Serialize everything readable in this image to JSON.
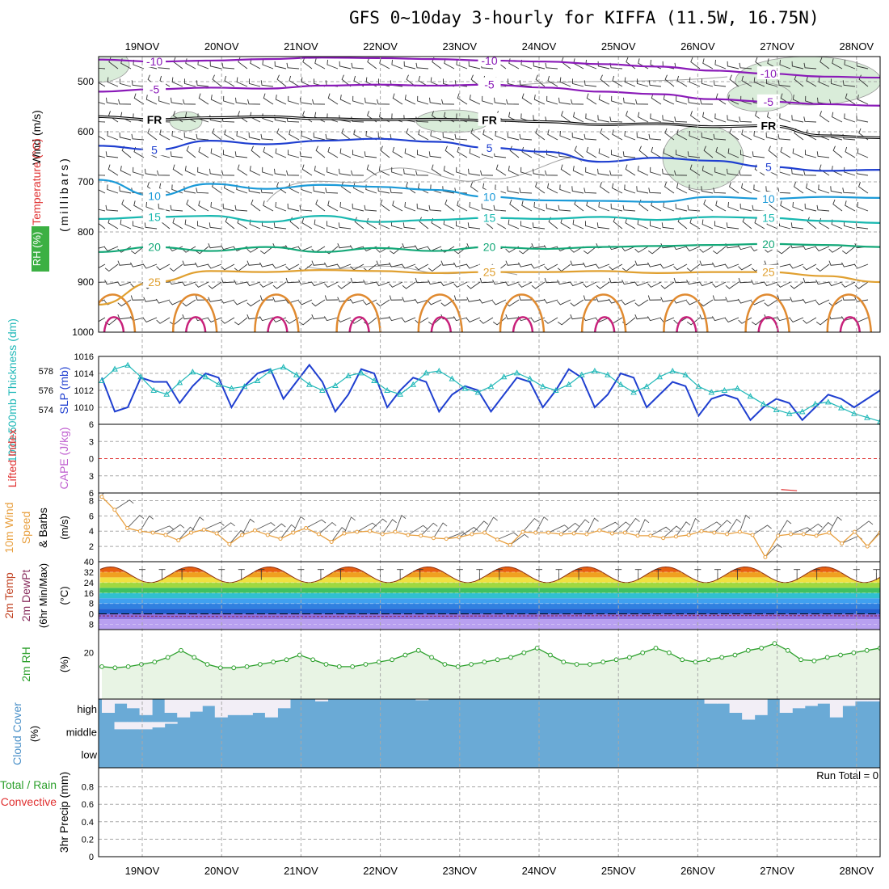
{
  "title": "GFS 0~10day 3-hourly for KIFFA (11.5W, 16.75N)",
  "dates": [
    "19NOV",
    "20NOV",
    "21NOV",
    "22NOV",
    "23NOV",
    "24NOV",
    "25NOV",
    "26NOV",
    "27NOV",
    "28NOV"
  ],
  "colors": {
    "grid": "#a8a8a8",
    "frame": "#000000",
    "wind_bg": "#d9ecd9",
    "rain_label": "#2ca02c",
    "conv_label": "#e03030"
  },
  "chart_data": [
    {
      "type": "line",
      "name": "upper-air",
      "ylabel": "(millibars)",
      "labels": {
        "wind": "Wind (m/s)",
        "temp": "Temperature (°C)",
        "rh": "RH (%)"
      },
      "y_ticks": [
        500,
        600,
        700,
        800,
        900,
        1000
      ],
      "ylim": [
        450,
        1000
      ],
      "isotherms": [
        {
          "temp": -10,
          "label": "-10",
          "color": "#8a1ab8",
          "mb": [
            456,
            460,
            458,
            455,
            452,
            453,
            455,
            458,
            460,
            465,
            470,
            478,
            484,
            490,
            492
          ]
        },
        {
          "temp": -5,
          "label": "-5",
          "color": "#8a1ab8",
          "mb": [
            520,
            515,
            512,
            514,
            508,
            506,
            508,
            506,
            512,
            520,
            525,
            535,
            540,
            545,
            548
          ]
        },
        {
          "temp": 0,
          "label": "FR",
          "color": "#000000",
          "mb": [
            570,
            576,
            572,
            570,
            574,
            576,
            575,
            577,
            580,
            586,
            584,
            590,
            588,
            608,
            612
          ]
        },
        {
          "temp": 5,
          "label": "5",
          "color": "#1f3fd0",
          "mb": [
            628,
            636,
            618,
            625,
            618,
            614,
            620,
            632,
            640,
            660,
            652,
            658,
            670,
            678,
            676
          ]
        },
        {
          "temp": 10,
          "label": "10",
          "color": "#1a9ad8",
          "mb": [
            696,
            728,
            704,
            714,
            706,
            710,
            716,
            730,
            737,
            738,
            740,
            730,
            734,
            730,
            732
          ]
        },
        {
          "temp": 15,
          "label": "15",
          "color": "#18b8b0",
          "mb": [
            774,
            770,
            768,
            780,
            768,
            780,
            776,
            772,
            774,
            770,
            776,
            770,
            772,
            778,
            782
          ]
        },
        {
          "temp": 20,
          "label": "20",
          "color": "#14a878",
          "mb": [
            840,
            830,
            838,
            830,
            840,
            832,
            838,
            830,
            834,
            830,
            828,
            826,
            824,
            826,
            830
          ]
        },
        {
          "temp": 25,
          "label": "25",
          "color": "#e0a030",
          "mb": [
            945,
            900,
            878,
            880,
            876,
            878,
            882,
            880,
            880,
            878,
            882,
            880,
            880,
            888,
            900
          ]
        }
      ]
    },
    {
      "type": "line",
      "name": "slp-thickness",
      "labels": {
        "thickness": "1000-500mb Thickness (dm)",
        "slp": "SLP (mb)"
      },
      "slp_ticks": [
        1010,
        1012,
        1014,
        1016
      ],
      "thickness_ticks": [
        574,
        576,
        578
      ],
      "slp_range": [
        1008,
        1016
      ],
      "thickness_range": [
        572.5,
        579.5
      ],
      "series": [
        {
          "name": "SLP (mb)",
          "color": "#1f3fd0",
          "values": [
            1013.5,
            1009.5,
            1010.0,
            1013.5,
            1013.0,
            1013.0,
            1010.5,
            1012.5,
            1014.0,
            1013.5,
            1010.0,
            1012.5,
            1014.0,
            1014.5,
            1011.0,
            1013.0,
            1015.0,
            1013.0,
            1009.5,
            1011.5,
            1014.5,
            1014.0,
            1010.0,
            1012.0,
            1013.5,
            1013.0,
            1009.5,
            1011.5,
            1012.5,
            1012.0,
            1009.5,
            1011.5,
            1013.5,
            1013.0,
            1010.0,
            1012.0,
            1014.5,
            1013.5,
            1010.0,
            1011.5,
            1014.0,
            1013.5,
            1010.0,
            1011.5,
            1013.0,
            1012.5,
            1009.0,
            1011.0,
            1011.5,
            1011.0,
            1008.5,
            1010.0,
            1011.0,
            1010.5,
            1008.5,
            1010.0,
            1011.5,
            1011.0,
            1010.0,
            1011.0,
            1012.0
          ]
        },
        {
          "name": "1000-500mb Thickness (dm)",
          "color": "#20b8b8",
          "values": [
            577.0,
            578.2,
            578.6,
            577.4,
            576.0,
            575.6,
            576.8,
            577.9,
            577.4,
            576.6,
            576.2,
            576.4,
            577.0,
            578.0,
            578.4,
            577.6,
            576.6,
            576.0,
            576.5,
            577.5,
            577.8,
            577.0,
            576.0,
            575.6,
            576.6,
            577.8,
            578.0,
            577.2,
            576.2,
            575.8,
            576.4,
            577.4,
            577.8,
            577.2,
            576.4,
            576.0,
            576.6,
            577.6,
            578.0,
            577.6,
            576.6,
            575.8,
            576.4,
            577.4,
            578.0,
            577.6,
            576.4,
            575.8,
            576.0,
            576.2,
            575.4,
            574.6,
            574.0,
            573.6,
            573.8,
            574.6,
            574.8,
            574.2,
            573.6,
            573.2,
            572.8
          ]
        }
      ]
    },
    {
      "type": "line",
      "name": "stability",
      "labels": {
        "li": "Lifted Index",
        "cape": "CAPE (J/kg)"
      },
      "y_ticks": [
        -6,
        -3,
        0,
        3,
        6
      ],
      "ylim": [
        -6,
        6
      ],
      "series": [
        {
          "name": "Lifted Index",
          "color": "#e03030",
          "points": [
            [
              8.05,
              5.4
            ],
            [
              8.15,
              5.5
            ],
            [
              8.25,
              5.6
            ],
            [
              9.55,
              5.2
            ],
            [
              9.65,
              4.6
            ],
            [
              9.75,
              5.3
            ]
          ]
        }
      ]
    },
    {
      "type": "line",
      "name": "10m-wind",
      "labels": {
        "a": "10m Wind",
        "b": "Speed",
        "c": "& Barbs",
        "units": "(m/s)"
      },
      "y_ticks": [
        2,
        4,
        6,
        8
      ],
      "ylim": [
        0,
        9
      ],
      "series": [
        {
          "name": "10m Wind Speed",
          "color": "#e8a040",
          "values": [
            8.5,
            6.8,
            4.4,
            4.0,
            3.8,
            3.5,
            2.8,
            3.8,
            4.2,
            3.7,
            2.3,
            3.5,
            4.1,
            3.5,
            3.0,
            3.8,
            4.4,
            3.6,
            2.6,
            3.7,
            3.9,
            4.0,
            3.6,
            3.9,
            3.5,
            3.4,
            3.1,
            3.0,
            3.2,
            3.6,
            3.8,
            2.9,
            2.2,
            3.9,
            3.8,
            3.8,
            3.6,
            3.7,
            3.6,
            4.1,
            3.7,
            3.8,
            3.4,
            3.4,
            3.1,
            3.3,
            3.5,
            4.0,
            3.8,
            3.6,
            3.9,
            3.5,
            0.6,
            3.4,
            3.6,
            3.6,
            3.4,
            3.8,
            2.4,
            3.9,
            2.0,
            3.8
          ]
        }
      ]
    },
    {
      "type": "area",
      "name": "2m-temp",
      "labels": {
        "a": "2m Temp",
        "b": "2m DewPt",
        "c": "(6hr Min/Max)",
        "units": "(°C)"
      },
      "y_ticks": [
        -8,
        0,
        8,
        16,
        24,
        32,
        40
      ],
      "ylim": [
        -12,
        40
      ],
      "temp_min": 24,
      "temp_max": 36,
      "dewpt_range": [
        -3,
        0
      ]
    },
    {
      "type": "area",
      "name": "2m-rh",
      "labels": {
        "a": "2m RH",
        "units": "(%)"
      },
      "y_ticks": [
        20
      ],
      "ylim": [
        0,
        30
      ],
      "series": [
        {
          "name": "2m RH",
          "color": "#2ca02c",
          "values": [
            14,
            13.5,
            14,
            15,
            16,
            18,
            21,
            18,
            15,
            13.5,
            13.5,
            14,
            15,
            16,
            17,
            19,
            17,
            15,
            14,
            14,
            15,
            16,
            17,
            19,
            21,
            18,
            15,
            14,
            15,
            16,
            17,
            18,
            20,
            22,
            19,
            16,
            15,
            15,
            16,
            17,
            18,
            20,
            22,
            20,
            17,
            16,
            17,
            18,
            19,
            21,
            22,
            24,
            21,
            17,
            16.5,
            18,
            19,
            20,
            21,
            22
          ]
        }
      ]
    },
    {
      "type": "bar",
      "name": "cloud-cover",
      "labels": {
        "title": "Cloud Cover",
        "units": "(%)",
        "high": "high",
        "middle": "middle",
        "low": "low"
      },
      "high_pct": [
        40,
        80,
        60,
        30,
        100,
        40,
        20,
        45,
        70,
        20,
        30,
        30,
        40,
        20,
        60,
        100,
        100,
        90,
        100,
        100,
        100,
        100,
        100,
        100,
        100,
        95,
        100,
        100,
        100,
        100,
        100,
        100,
        100,
        100,
        100,
        100,
        100,
        100,
        100,
        100,
        100,
        100,
        100,
        100,
        100,
        100,
        100,
        100,
        80,
        80,
        40,
        10,
        30,
        100,
        40,
        60,
        70,
        80,
        20,
        70,
        90,
        90
      ],
      "mid_pct": [
        0,
        40,
        40,
        40,
        30,
        10,
        0,
        0,
        0,
        0,
        0,
        0,
        0,
        0,
        0,
        0,
        0,
        0,
        0,
        0,
        0,
        0,
        0,
        0,
        0,
        0,
        0,
        0,
        0,
        0,
        0,
        0,
        0,
        0,
        0,
        0,
        0,
        0,
        0,
        0,
        0,
        0,
        0,
        0,
        0,
        0,
        0,
        0,
        0,
        0,
        0,
        0,
        0,
        0,
        0,
        0,
        0,
        0,
        0,
        0,
        0,
        0
      ]
    },
    {
      "type": "bar",
      "name": "precip",
      "labels": {
        "a": "Total / Rain",
        "b": "Convective",
        "c": "3hr Precip (mm)",
        "run_total": "Run Total = 0"
      },
      "y_ticks": [
        "0",
        "0.2",
        "0.4",
        "0.6",
        "0.8"
      ],
      "ylim": [
        0,
        1
      ],
      "values": []
    }
  ]
}
